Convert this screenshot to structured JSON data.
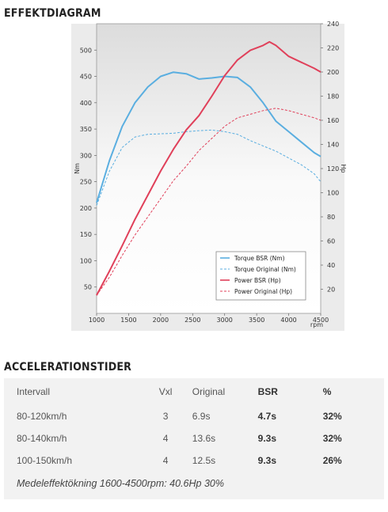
{
  "titles": {
    "chart_section": "EFFEKTDIAGRAM",
    "accel_section": "ACCELERATIONSTIDER"
  },
  "chart_data": {
    "type": "line",
    "xlabel": "rpm",
    "ylabel_left": "Nm",
    "ylabel_right": "Hp",
    "x_range": [
      1000,
      4500
    ],
    "x_ticks": [
      "1000",
      "1500",
      "2000",
      "2500",
      "3000",
      "3500",
      "4000",
      "4500"
    ],
    "left_range": [
      0,
      550
    ],
    "left_ticks": [
      "50",
      "100",
      "150",
      "200",
      "250",
      "300",
      "350",
      "400",
      "450",
      "500"
    ],
    "right_range": [
      0,
      240
    ],
    "right_ticks": [
      "20",
      "40",
      "60",
      "80",
      "100",
      "120",
      "140",
      "160",
      "180",
      "200",
      "220",
      "240"
    ],
    "legend_position": "bottom-right",
    "series": [
      {
        "name": "Torque BSR (Nm)",
        "axis": "left",
        "color": "#5aaee0",
        "dash": false,
        "x": [
          1000,
          1200,
          1400,
          1600,
          1800,
          2000,
          2200,
          2400,
          2600,
          2800,
          3000,
          3200,
          3400,
          3600,
          3800,
          4000,
          4200,
          4400,
          4500
        ],
        "y": [
          210,
          290,
          355,
          400,
          430,
          450,
          458,
          455,
          445,
          447,
          450,
          448,
          430,
          400,
          365,
          345,
          325,
          305,
          298
        ]
      },
      {
        "name": "Torque Original (Nm)",
        "axis": "left",
        "color": "#5aaee0",
        "dash": true,
        "x": [
          1000,
          1200,
          1400,
          1600,
          1800,
          2000,
          2200,
          2400,
          2600,
          2800,
          3000,
          3200,
          3400,
          3600,
          3800,
          4000,
          4200,
          4400,
          4500
        ],
        "y": [
          205,
          270,
          315,
          335,
          340,
          341,
          342,
          345,
          347,
          348,
          345,
          340,
          328,
          318,
          308,
          295,
          282,
          265,
          250
        ]
      },
      {
        "name": "Power BSR (Hp)",
        "axis": "right",
        "color": "#e0405a",
        "dash": false,
        "x": [
          1000,
          1200,
          1400,
          1600,
          1800,
          2000,
          2200,
          2400,
          2600,
          2800,
          3000,
          3200,
          3400,
          3600,
          3700,
          3800,
          4000,
          4200,
          4400,
          4500
        ],
        "y": [
          15,
          35,
          56,
          78,
          98,
          118,
          136,
          152,
          164,
          180,
          197,
          210,
          218,
          222,
          225,
          222,
          213,
          208,
          203,
          200
        ]
      },
      {
        "name": "Power Original (Hp)",
        "axis": "right",
        "color": "#e0405a",
        "dash": true,
        "x": [
          1000,
          1200,
          1400,
          1600,
          1800,
          2000,
          2200,
          2400,
          2600,
          2800,
          3000,
          3200,
          3400,
          3600,
          3800,
          4000,
          4200,
          4400,
          4500
        ],
        "y": [
          15,
          30,
          48,
          65,
          80,
          95,
          110,
          122,
          135,
          145,
          155,
          162,
          165,
          168,
          170,
          168,
          165,
          162,
          160
        ]
      }
    ]
  },
  "accel_table": {
    "headers": [
      "Intervall",
      "Vxl",
      "Original",
      "BSR",
      "%"
    ],
    "rows": [
      [
        "80-120km/h",
        "3",
        "6.9s",
        "4.7s",
        "32%"
      ],
      [
        "80-140km/h",
        "4",
        "13.6s",
        "9.3s",
        "32%"
      ],
      [
        "100-150km/h",
        "4",
        "12.5s",
        "9.3s",
        "26%"
      ]
    ],
    "note": "Medeleffektökning 1600-4500rpm: 40.6Hp 30%"
  }
}
